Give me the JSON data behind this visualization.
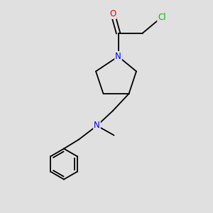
{
  "background_color": "#e0e0e0",
  "atom_colors": {
    "O": "#ff0000",
    "N": "#0000ff",
    "Cl": "#00bb00",
    "C": "#000000"
  },
  "font_size_atoms": 8.5,
  "figsize": [
    3.0,
    3.0
  ],
  "dpi": 100
}
